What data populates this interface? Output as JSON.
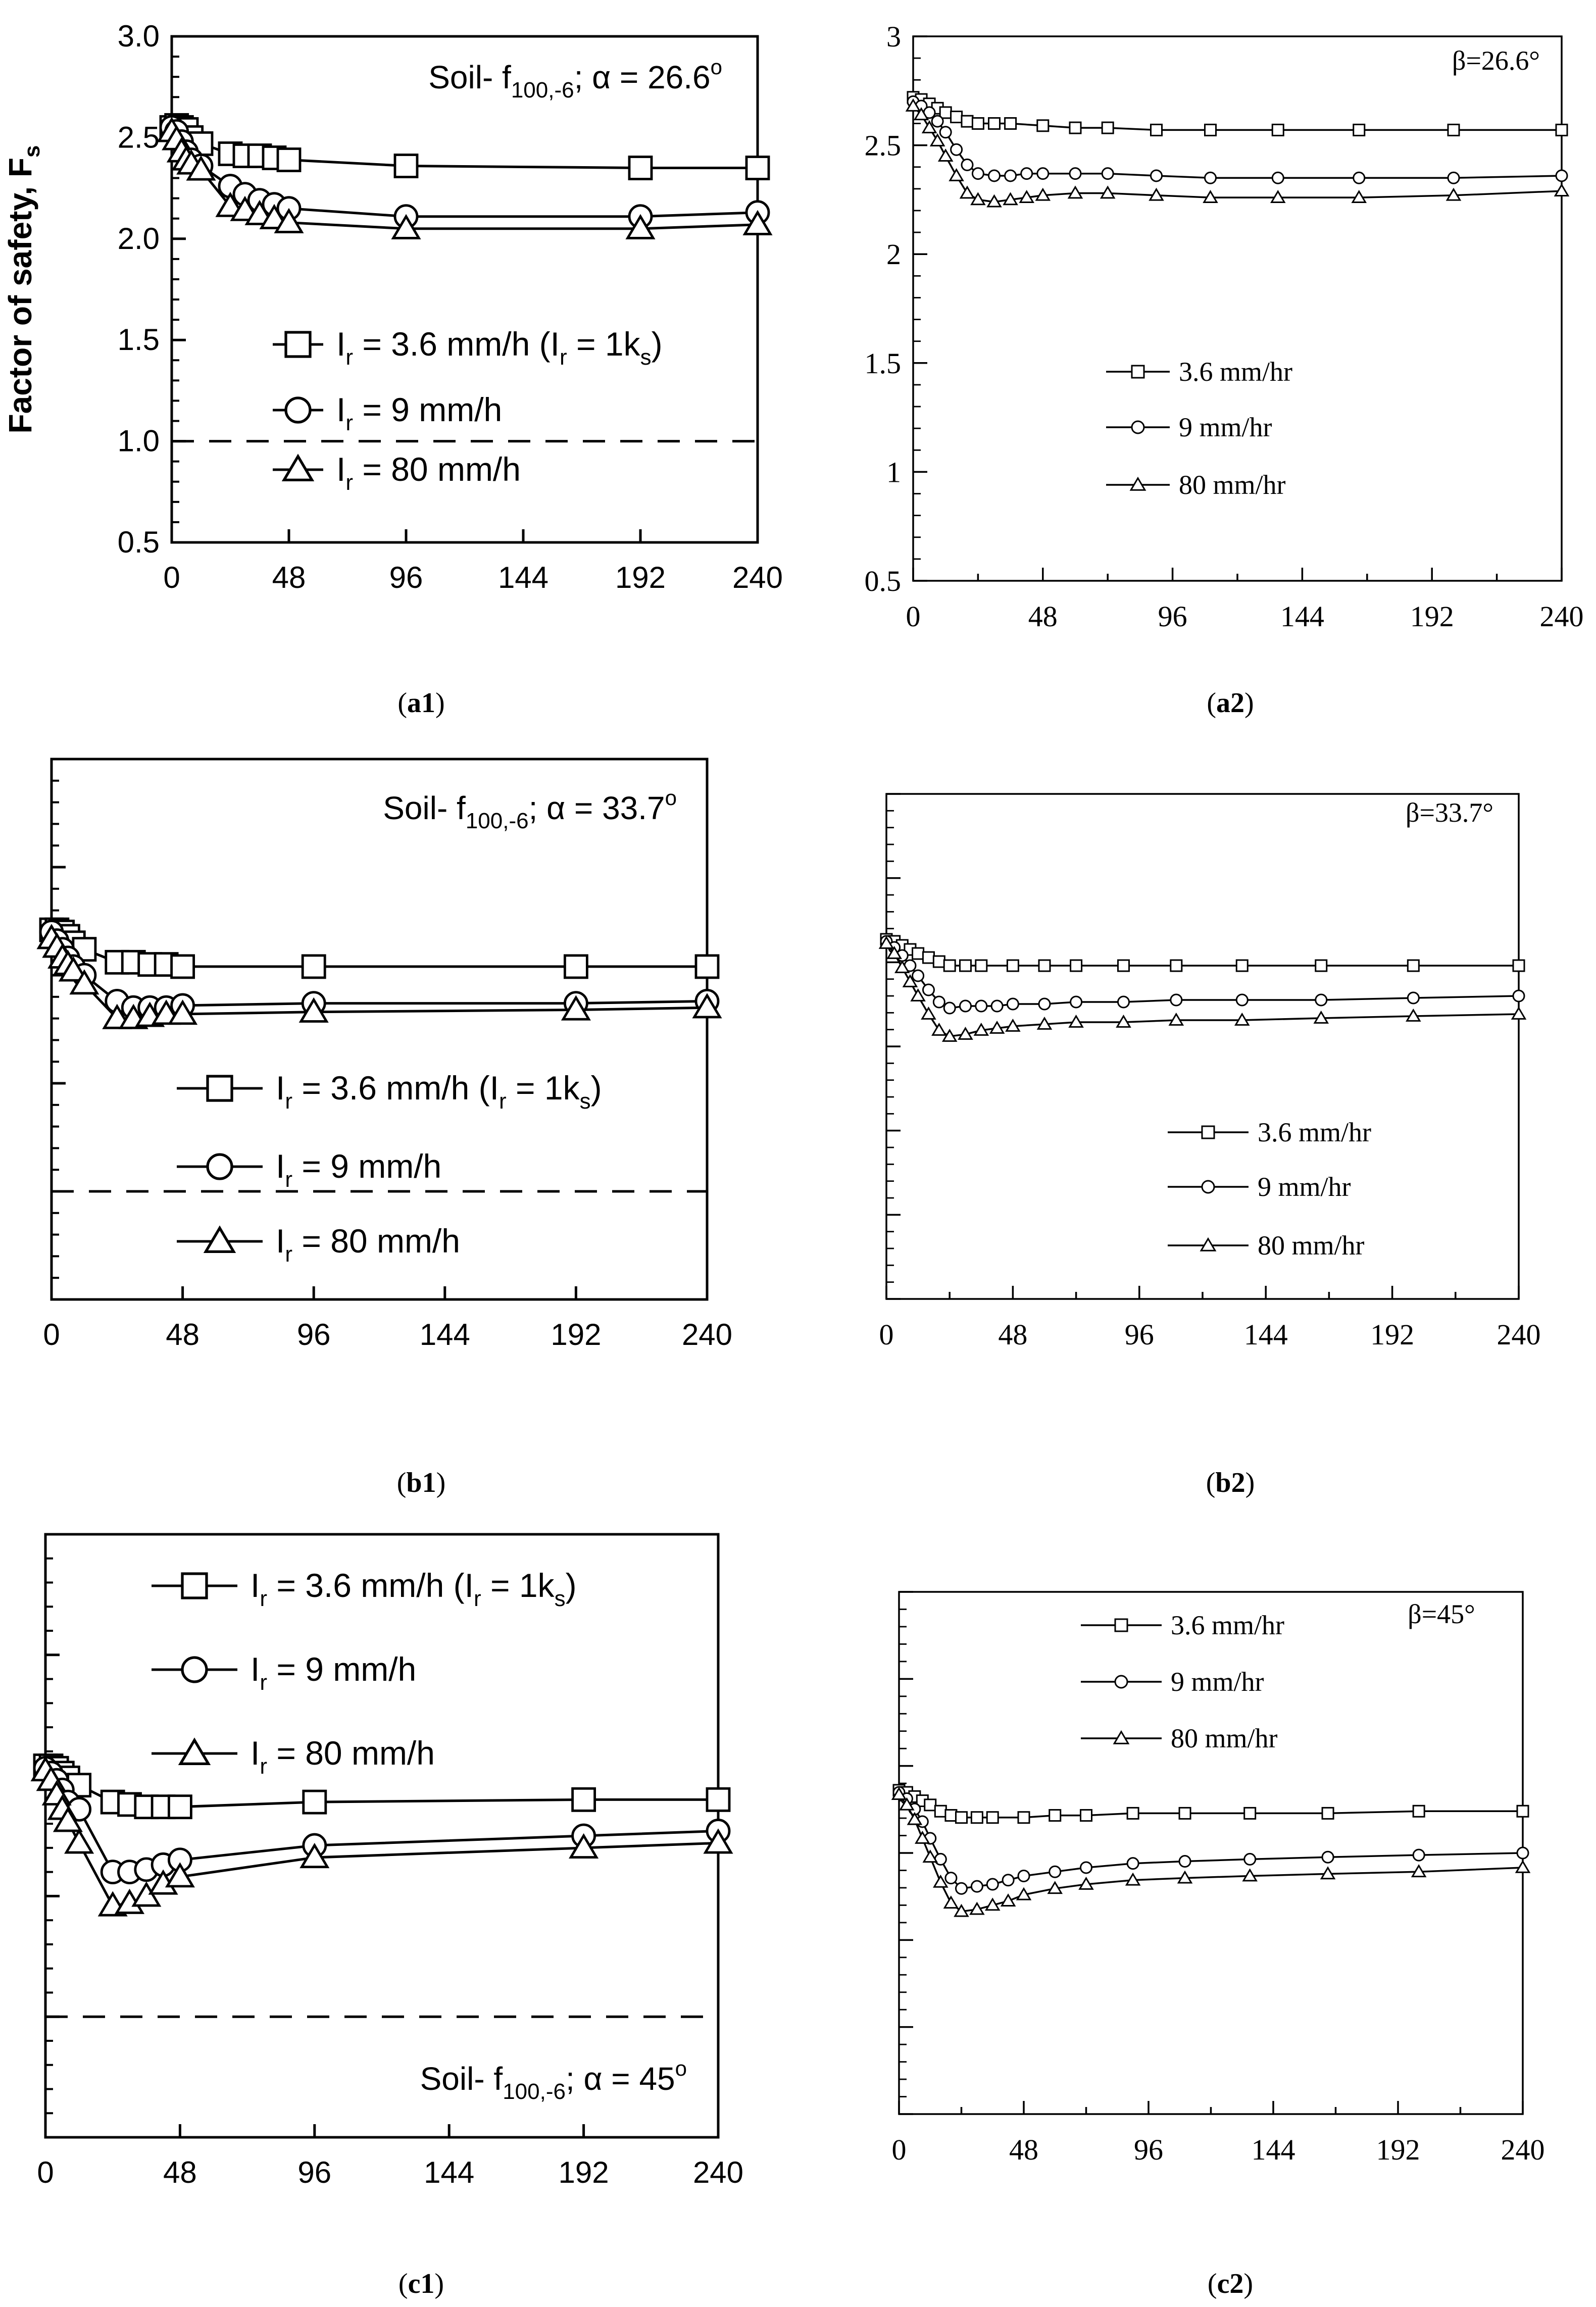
{
  "figure": {
    "panels": [
      {
        "id": "a1",
        "caption_letter": "a",
        "caption_num": "1"
      },
      {
        "id": "a2",
        "caption_letter": "a",
        "caption_num": "2"
      },
      {
        "id": "b1",
        "caption_letter": "b",
        "caption_num": "1"
      },
      {
        "id": "b2",
        "caption_letter": "b",
        "caption_num": "2"
      },
      {
        "id": "c1",
        "caption_letter": "c",
        "caption_num": "1"
      },
      {
        "id": "c2",
        "caption_letter": "c",
        "caption_num": "2"
      }
    ]
  },
  "chart_data": [
    {
      "id": "a1",
      "type": "line",
      "style": "left",
      "title_parts": {
        "pre": "Soil- f",
        "sub": "100,-6",
        "post": "; α = 26.6",
        "sup": "o"
      },
      "ylabel": "Factor of safety, F",
      "ylabel_sub": "s",
      "xlim": [
        0,
        240
      ],
      "ylim": [
        0.5,
        3.0
      ],
      "xticks": [
        "0",
        "48",
        "96",
        "144",
        "192",
        "240"
      ],
      "yticks": [
        "0.5",
        "1.0",
        "1.5",
        "2.0",
        "2.5",
        "3.0"
      ],
      "threshold": 1.0,
      "series": [
        {
          "name": "3.6 mm/h",
          "legend_pre": "I",
          "legend_sub": "r",
          "legend_post": " = 3.6 mm/h (I",
          "legend_sub2": "r",
          "legend_post2": " = 1k",
          "legend_sub3": "s",
          "legend_end": ")",
          "marker": "square",
          "x": [
            0,
            2,
            4,
            6,
            8,
            12,
            24,
            30,
            36,
            42,
            48,
            96,
            192,
            240
          ],
          "y": [
            2.55,
            2.56,
            2.55,
            2.54,
            2.5,
            2.47,
            2.42,
            2.41,
            2.41,
            2.4,
            2.39,
            2.36,
            2.35,
            2.35
          ]
        },
        {
          "name": "9 mm/h",
          "legend_pre": "I",
          "legend_sub": "r",
          "legend_post": " = 9 mm/h",
          "marker": "circle",
          "x": [
            0,
            2,
            4,
            6,
            8,
            12,
            24,
            30,
            36,
            42,
            48,
            96,
            192,
            240
          ],
          "y": [
            2.55,
            2.53,
            2.48,
            2.43,
            2.39,
            2.36,
            2.26,
            2.22,
            2.19,
            2.17,
            2.15,
            2.11,
            2.11,
            2.13
          ]
        },
        {
          "name": "80 mm/h",
          "legend_pre": "I",
          "legend_sub": "r",
          "legend_post": " = 80 mm/h",
          "marker": "triangle",
          "x": [
            0,
            2,
            4,
            6,
            8,
            12,
            24,
            30,
            36,
            42,
            48,
            96,
            192,
            240
          ],
          "y": [
            2.53,
            2.49,
            2.43,
            2.39,
            2.37,
            2.34,
            2.16,
            2.14,
            2.12,
            2.1,
            2.08,
            2.05,
            2.05,
            2.07
          ]
        }
      ]
    },
    {
      "id": "a2",
      "type": "line",
      "style": "right",
      "title": "β=26.6°",
      "xlim": [
        0,
        240
      ],
      "ylim": [
        0.5,
        3.0
      ],
      "xticks": [
        "0",
        "48",
        "96",
        "144",
        "192",
        "240"
      ],
      "yticks": [
        "0.5",
        "1",
        "1.5",
        "2",
        "2.5",
        "3"
      ],
      "series": [
        {
          "name": "3.6 mm/hr",
          "marker": "square",
          "x": [
            0,
            3,
            6,
            9,
            12,
            16,
            20,
            24,
            30,
            36,
            48,
            60,
            72,
            90,
            110,
            135,
            165,
            200,
            240
          ],
          "y": [
            2.72,
            2.71,
            2.69,
            2.67,
            2.65,
            2.63,
            2.61,
            2.6,
            2.6,
            2.6,
            2.59,
            2.58,
            2.58,
            2.57,
            2.57,
            2.57,
            2.57,
            2.57,
            2.57
          ]
        },
        {
          "name": "9 mm/hr",
          "marker": "circle",
          "x": [
            0,
            3,
            6,
            9,
            12,
            16,
            20,
            24,
            30,
            36,
            42,
            48,
            60,
            72,
            90,
            110,
            135,
            165,
            200,
            240
          ],
          "y": [
            2.7,
            2.68,
            2.65,
            2.61,
            2.56,
            2.48,
            2.41,
            2.37,
            2.36,
            2.36,
            2.37,
            2.37,
            2.37,
            2.37,
            2.36,
            2.35,
            2.35,
            2.35,
            2.35,
            2.36
          ]
        },
        {
          "name": "80 mm/hr",
          "marker": "triangle",
          "x": [
            0,
            3,
            6,
            9,
            12,
            16,
            20,
            24,
            30,
            36,
            42,
            48,
            60,
            72,
            90,
            110,
            135,
            165,
            200,
            240
          ],
          "y": [
            2.68,
            2.64,
            2.58,
            2.52,
            2.45,
            2.36,
            2.28,
            2.25,
            2.24,
            2.25,
            2.26,
            2.27,
            2.28,
            2.28,
            2.27,
            2.26,
            2.26,
            2.26,
            2.27,
            2.29
          ]
        }
      ]
    },
    {
      "id": "b1",
      "type": "line",
      "style": "left",
      "title_parts": {
        "pre": "Soil- f",
        "sub": "100,-6",
        "post": "; α = 33.7",
        "sup": "o"
      },
      "xlim": [
        0,
        240
      ],
      "ylim": [
        0.5,
        3.0
      ],
      "xticks": [
        "0",
        "48",
        "96",
        "144",
        "192",
        "240"
      ],
      "yticks": [
        "",
        "",
        "",
        "",
        "",
        ""
      ],
      "threshold": 1.0,
      "series": [
        {
          "name": "3.6 mm/h",
          "legend_pre": "I",
          "legend_sub": "r",
          "legend_post": " = 3.6 mm/h (I",
          "legend_sub2": "r",
          "legend_post2": " = 1k",
          "legend_sub3": "s",
          "legend_end": ")",
          "marker": "square",
          "x": [
            0,
            2,
            4,
            6,
            8,
            12,
            24,
            30,
            36,
            42,
            48,
            96,
            192,
            240
          ],
          "y": [
            2.21,
            2.21,
            2.2,
            2.18,
            2.15,
            2.12,
            2.06,
            2.06,
            2.05,
            2.05,
            2.04,
            2.04,
            2.04,
            2.04
          ]
        },
        {
          "name": "9 mm/h",
          "legend_pre": "I",
          "legend_sub": "r",
          "legend_post": " = 9 mm/h",
          "marker": "circle",
          "x": [
            0,
            2,
            4,
            6,
            8,
            12,
            24,
            30,
            36,
            42,
            48,
            96,
            192,
            240
          ],
          "y": [
            2.2,
            2.16,
            2.12,
            2.08,
            2.04,
            2.0,
            1.88,
            1.85,
            1.85,
            1.85,
            1.86,
            1.87,
            1.87,
            1.88
          ]
        },
        {
          "name": "80 mm/h",
          "legend_pre": "I",
          "legend_sub": "r",
          "legend_post": " = 80 mm/h",
          "marker": "triangle",
          "x": [
            0,
            2,
            4,
            6,
            8,
            12,
            24,
            30,
            36,
            42,
            48,
            96,
            192,
            240
          ],
          "y": [
            2.17,
            2.13,
            2.08,
            2.05,
            2.02,
            1.96,
            1.8,
            1.8,
            1.81,
            1.82,
            1.82,
            1.83,
            1.84,
            1.85
          ]
        }
      ]
    },
    {
      "id": "b2",
      "type": "line",
      "style": "right",
      "title": "β=33.7°",
      "xlim": [
        0,
        240
      ],
      "ylim": [
        0.5,
        3.0
      ],
      "xticks": [
        "0",
        "48",
        "96",
        "144",
        "192",
        "240"
      ],
      "yticks": [
        "",
        "",
        "",
        "",
        "",
        "",
        ""
      ],
      "series": [
        {
          "name": "3.6 mm/hr",
          "marker": "square",
          "x": [
            0,
            3,
            6,
            9,
            12,
            16,
            20,
            24,
            30,
            36,
            48,
            60,
            72,
            90,
            110,
            135,
            165,
            200,
            240
          ],
          "y": [
            2.28,
            2.27,
            2.25,
            2.23,
            2.21,
            2.19,
            2.17,
            2.15,
            2.15,
            2.15,
            2.15,
            2.15,
            2.15,
            2.15,
            2.15,
            2.15,
            2.15,
            2.15,
            2.15
          ]
        },
        {
          "name": "9 mm/hr",
          "marker": "circle",
          "x": [
            0,
            3,
            6,
            9,
            12,
            16,
            20,
            24,
            30,
            36,
            42,
            48,
            60,
            72,
            90,
            110,
            135,
            165,
            200,
            240
          ],
          "y": [
            2.27,
            2.24,
            2.2,
            2.15,
            2.1,
            2.03,
            1.97,
            1.94,
            1.95,
            1.95,
            1.95,
            1.96,
            1.96,
            1.97,
            1.97,
            1.98,
            1.98,
            1.98,
            1.99,
            2.0
          ]
        },
        {
          "name": "80 mm/hr",
          "marker": "triangle",
          "x": [
            0,
            3,
            6,
            9,
            12,
            16,
            20,
            24,
            30,
            36,
            42,
            48,
            60,
            72,
            90,
            110,
            135,
            165,
            200,
            240
          ],
          "y": [
            2.26,
            2.21,
            2.14,
            2.07,
            2.0,
            1.91,
            1.83,
            1.8,
            1.81,
            1.83,
            1.84,
            1.85,
            1.86,
            1.87,
            1.87,
            1.88,
            1.88,
            1.89,
            1.9,
            1.91
          ]
        }
      ]
    },
    {
      "id": "c1",
      "type": "line",
      "style": "left",
      "title_parts": {
        "pre": "Soil- f",
        "sub": "100,-6",
        "post": "; α = 45",
        "sup": "o"
      },
      "xlim": [
        0,
        240
      ],
      "ylim": [
        0.5,
        3.0
      ],
      "xticks": [
        "0",
        "48",
        "96",
        "144",
        "192",
        "240"
      ],
      "yticks": [
        "",
        "",
        "",
        "",
        "",
        ""
      ],
      "threshold": 1.0,
      "series": [
        {
          "name": "3.6 mm/h",
          "legend_pre": "I",
          "legend_sub": "r",
          "legend_post": " = 3.6 mm/h (I",
          "legend_sub2": "r",
          "legend_post2": " = 1k",
          "legend_sub3": "s",
          "legend_end": ")",
          "marker": "square",
          "x": [
            0,
            2,
            4,
            6,
            8,
            12,
            24,
            30,
            36,
            42,
            48,
            96,
            192,
            240
          ],
          "y": [
            2.04,
            2.04,
            2.03,
            2.01,
            1.99,
            1.96,
            1.89,
            1.88,
            1.87,
            1.87,
            1.87,
            1.89,
            1.9,
            1.9
          ]
        },
        {
          "name": "9 mm/h",
          "legend_pre": "I",
          "legend_sub": "r",
          "legend_post": " = 9 mm/h",
          "marker": "circle",
          "x": [
            0,
            2,
            4,
            6,
            8,
            12,
            24,
            30,
            36,
            42,
            48,
            96,
            192,
            240
          ],
          "y": [
            2.03,
            2.01,
            1.98,
            1.94,
            1.89,
            1.86,
            1.6,
            1.6,
            1.61,
            1.63,
            1.65,
            1.71,
            1.75,
            1.77
          ]
        },
        {
          "name": "80 mm/h",
          "legend_pre": "I",
          "legend_sub": "r",
          "legend_post": " = 80 mm/h",
          "marker": "triangle",
          "x": [
            0,
            2,
            4,
            6,
            8,
            12,
            24,
            30,
            36,
            42,
            48,
            96,
            192,
            240
          ],
          "y": [
            2.02,
            1.98,
            1.92,
            1.86,
            1.81,
            1.72,
            1.46,
            1.47,
            1.5,
            1.55,
            1.58,
            1.66,
            1.7,
            1.72
          ]
        }
      ]
    },
    {
      "id": "c2",
      "type": "line",
      "style": "right",
      "title": "β=45°",
      "xlim": [
        0,
        240
      ],
      "ylim": [
        0.5,
        3.0
      ],
      "xticks": [
        "0",
        "48",
        "96",
        "144",
        "192",
        "240"
      ],
      "yticks": [
        "",
        "",
        "",
        "",
        "",
        "",
        ""
      ],
      "series": [
        {
          "name": "3.6 mm/hr",
          "marker": "square",
          "x": [
            0,
            3,
            6,
            9,
            12,
            16,
            20,
            24,
            30,
            36,
            48,
            60,
            72,
            90,
            110,
            135,
            165,
            200,
            240
          ],
          "y": [
            2.05,
            2.04,
            2.02,
            2.0,
            1.98,
            1.95,
            1.93,
            1.92,
            1.92,
            1.92,
            1.92,
            1.93,
            1.93,
            1.94,
            1.94,
            1.94,
            1.94,
            1.95,
            1.95
          ]
        },
        {
          "name": "9 mm/hr",
          "marker": "circle",
          "x": [
            0,
            3,
            6,
            9,
            12,
            16,
            20,
            24,
            30,
            36,
            42,
            48,
            60,
            72,
            90,
            110,
            135,
            165,
            200,
            240
          ],
          "y": [
            2.04,
            2.01,
            1.96,
            1.9,
            1.82,
            1.72,
            1.63,
            1.58,
            1.59,
            1.6,
            1.62,
            1.64,
            1.66,
            1.68,
            1.7,
            1.71,
            1.72,
            1.73,
            1.74,
            1.75
          ]
        },
        {
          "name": "80 mm/hr",
          "marker": "triangle",
          "x": [
            0,
            3,
            6,
            9,
            12,
            16,
            20,
            24,
            30,
            36,
            42,
            48,
            60,
            72,
            90,
            110,
            135,
            165,
            200,
            240
          ],
          "y": [
            2.03,
            1.98,
            1.91,
            1.82,
            1.73,
            1.61,
            1.51,
            1.47,
            1.48,
            1.5,
            1.52,
            1.55,
            1.58,
            1.6,
            1.62,
            1.63,
            1.64,
            1.65,
            1.66,
            1.68
          ]
        }
      ]
    }
  ]
}
